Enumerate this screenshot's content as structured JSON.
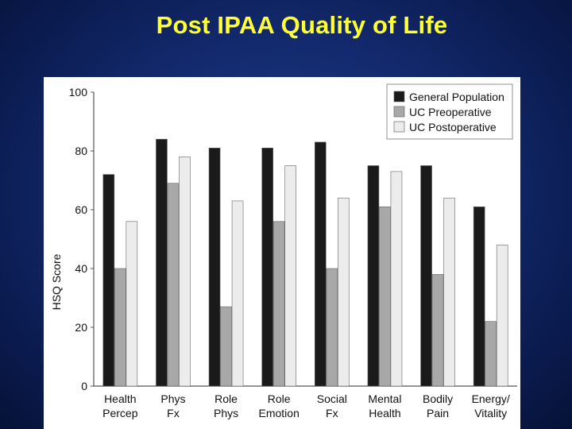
{
  "slide": {
    "title": "Post IPAA Quality of Life"
  },
  "colors": {
    "background": "#132a6e",
    "title": "#ffff33",
    "series": [
      "#1a1a1a",
      "#a8a8a8",
      "#ececec"
    ]
  },
  "chart_data": {
    "type": "bar",
    "title": "",
    "xlabel": "",
    "ylabel": "HSQ Score",
    "ylim": [
      0,
      100
    ],
    "yticks": [
      0,
      20,
      40,
      60,
      80,
      100
    ],
    "grid": false,
    "legend_position": "top-right",
    "categories": [
      [
        "Health",
        "Percep"
      ],
      [
        "Phys",
        "Fx"
      ],
      [
        "Role",
        "Phys"
      ],
      [
        "Role",
        "Emotion"
      ],
      [
        "Social",
        "Fx"
      ],
      [
        "Mental",
        "Health"
      ],
      [
        "Bodily",
        "Pain"
      ],
      [
        "Energy/",
        "Vitality"
      ]
    ],
    "series": [
      {
        "name": "General Population",
        "values": [
          72,
          84,
          81,
          81,
          83,
          75,
          75,
          61
        ]
      },
      {
        "name": "UC Preoperative",
        "values": [
          40,
          69,
          27,
          56,
          40,
          61,
          38,
          22
        ]
      },
      {
        "name": "UC Postoperative",
        "values": [
          56,
          78,
          63,
          75,
          64,
          73,
          64,
          48
        ]
      }
    ]
  }
}
